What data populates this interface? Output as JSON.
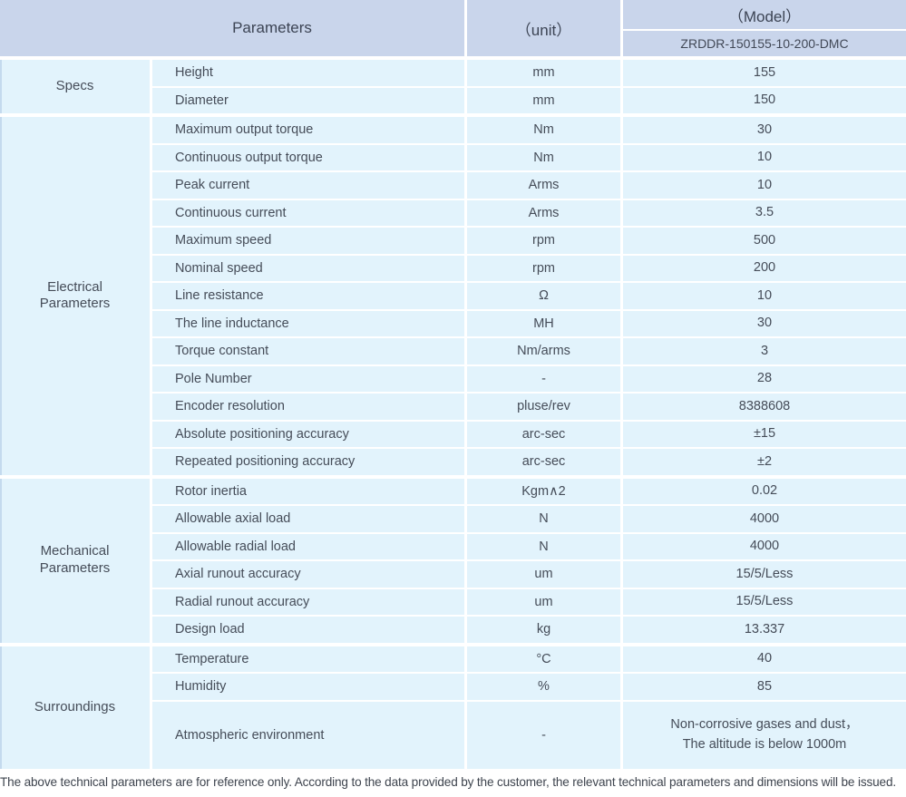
{
  "header": {
    "parameters_label": "Parameters",
    "unit_label": "（unit）",
    "model_label": "（Model）",
    "model_number": "ZRDDR-150155-10-200-DMC"
  },
  "sections": [
    {
      "category": "Specs",
      "rows": [
        {
          "param": "Height",
          "unit": "mm",
          "value": "155"
        },
        {
          "param": "Diameter",
          "unit": "mm",
          "value": "150"
        }
      ]
    },
    {
      "category": "Electrical\nParameters",
      "rows": [
        {
          "param": "Maximum output torque",
          "unit": "Nm",
          "value": "30"
        },
        {
          "param": "Continuous output torque",
          "unit": "Nm",
          "value": "10"
        },
        {
          "param": "Peak current",
          "unit": "Arms",
          "value": "10"
        },
        {
          "param": "Continuous current",
          "unit": "Arms",
          "value": "3.5"
        },
        {
          "param": "Maximum speed",
          "unit": "rpm",
          "value": "500"
        },
        {
          "param": "Nominal speed",
          "unit": "rpm",
          "value": "200"
        },
        {
          "param": "Line resistance",
          "unit": "Ω",
          "value": "10"
        },
        {
          "param": "The line inductance",
          "unit": "MH",
          "value": "30"
        },
        {
          "param": "Torque constant",
          "unit": "Nm/arms",
          "value": "3"
        },
        {
          "param": "Pole Number",
          "unit": "-",
          "value": "28"
        },
        {
          "param": "Encoder resolution",
          "unit": "pluse/rev",
          "value": "8388608"
        },
        {
          "param": "Absolute positioning accuracy",
          "unit": "arc-sec",
          "value": "±15"
        },
        {
          "param": "Repeated positioning accuracy",
          "unit": "arc-sec",
          "value": "±2"
        }
      ]
    },
    {
      "category": "Mechanical\nParameters",
      "rows": [
        {
          "param": "Rotor inertia",
          "unit": "Kgm∧2",
          "value": "0.02"
        },
        {
          "param": "Allowable axial load",
          "unit": "N",
          "value": "4000"
        },
        {
          "param": "Allowable radial load",
          "unit": "N",
          "value": "4000"
        },
        {
          "param": "Axial runout accuracy",
          "unit": "um",
          "value": "15/5/Less"
        },
        {
          "param": "Radial runout accuracy",
          "unit": "um",
          "value": "15/5/Less"
        },
        {
          "param": "Design load",
          "unit": "kg",
          "value": "13.337"
        }
      ]
    },
    {
      "category": "Surroundings",
      "rows": [
        {
          "param": "Temperature",
          "unit": "°C",
          "value": "40"
        },
        {
          "param": "Humidity",
          "unit": "%",
          "value": "85"
        },
        {
          "param": "Atmospheric environment",
          "unit": "-",
          "value": "Non-corrosive gases and dust，\nThe altitude is below 1000m"
        }
      ]
    }
  ],
  "footer": {
    "note": "The above technical parameters are for reference only. According to the data provided by the customer, the relevant technical parameters and dimensions will be issued."
  },
  "colors": {
    "header_bg": "#c9d5eb",
    "cell_bg": "#e2f3fc",
    "text": "#454c58"
  }
}
